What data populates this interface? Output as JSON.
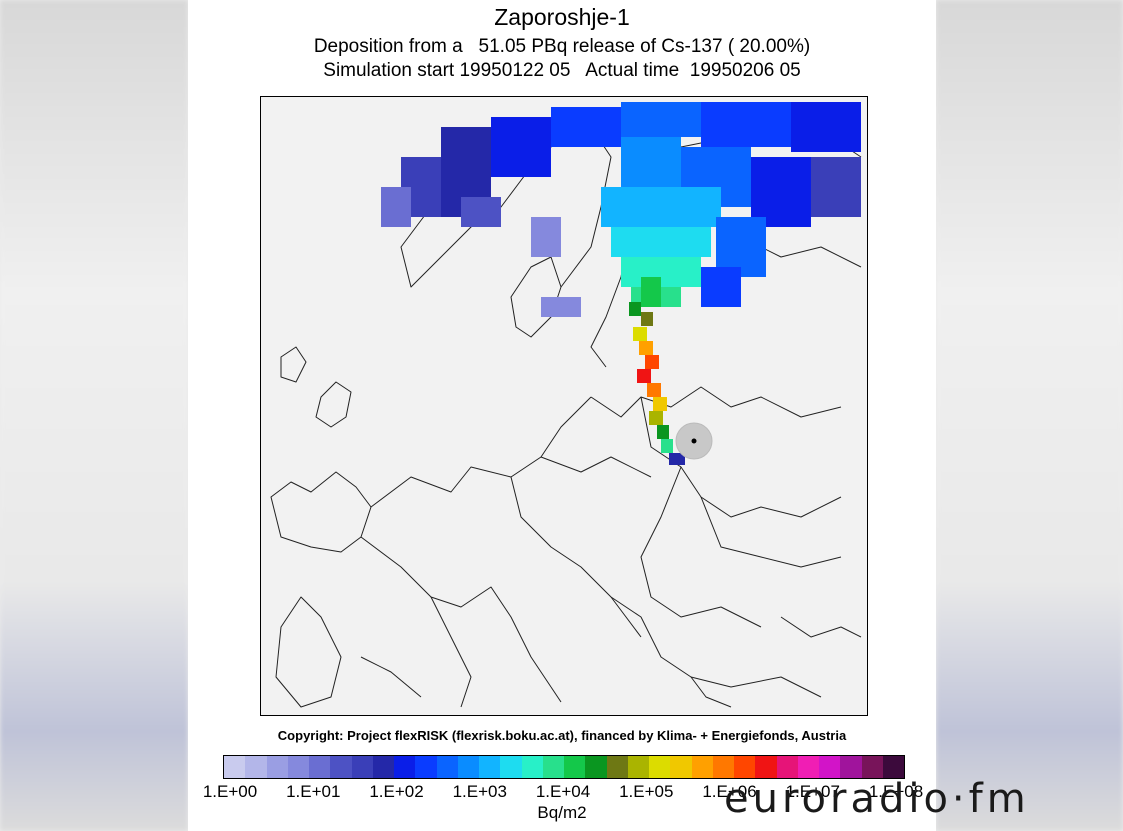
{
  "figure": {
    "title": "Zaporoshje-1",
    "subtitle_line1": "Deposition from a   51.05 PBq release of Cs-137 ( 20.00%)",
    "subtitle_line2": "Simulation start 19950122 05   Actual time  19950206 05",
    "copyright": "Copyright: Project flexRISK (flexrisk.boku.ac.at), financed by Klima- + Energiefonds, Austria"
  },
  "colorbar": {
    "unit": "Bq/m2",
    "tick_labels": [
      "1.E+00",
      "1.E+01",
      "1.E+02",
      "1.E+03",
      "1.E+04",
      "1.E+05",
      "1.E+06",
      "1.E+07",
      "1.E+08"
    ],
    "colors": [
      "#c9cbee",
      "#b3b6e9",
      "#9a9ee3",
      "#8589dd",
      "#6a6ed2",
      "#4d52c4",
      "#3a3fb8",
      "#2428a8",
      "#0a1ee8",
      "#0a3cff",
      "#0a64ff",
      "#0a8cff",
      "#12b4ff",
      "#1edcf0",
      "#28f0c8",
      "#28e08c",
      "#14c84a",
      "#0a9620",
      "#6e7814",
      "#aab400",
      "#dcdc00",
      "#f0c800",
      "#ffa000",
      "#ff7800",
      "#ff4600",
      "#f01414",
      "#e61478",
      "#f01eb4",
      "#d214c8",
      "#a0149c",
      "#78145a",
      "#3c0a3c"
    ]
  },
  "map": {
    "background_color": "#f2f2f2",
    "release_site_marker": "release-site"
  },
  "watermark": {
    "text": "euroradio·fm"
  }
}
